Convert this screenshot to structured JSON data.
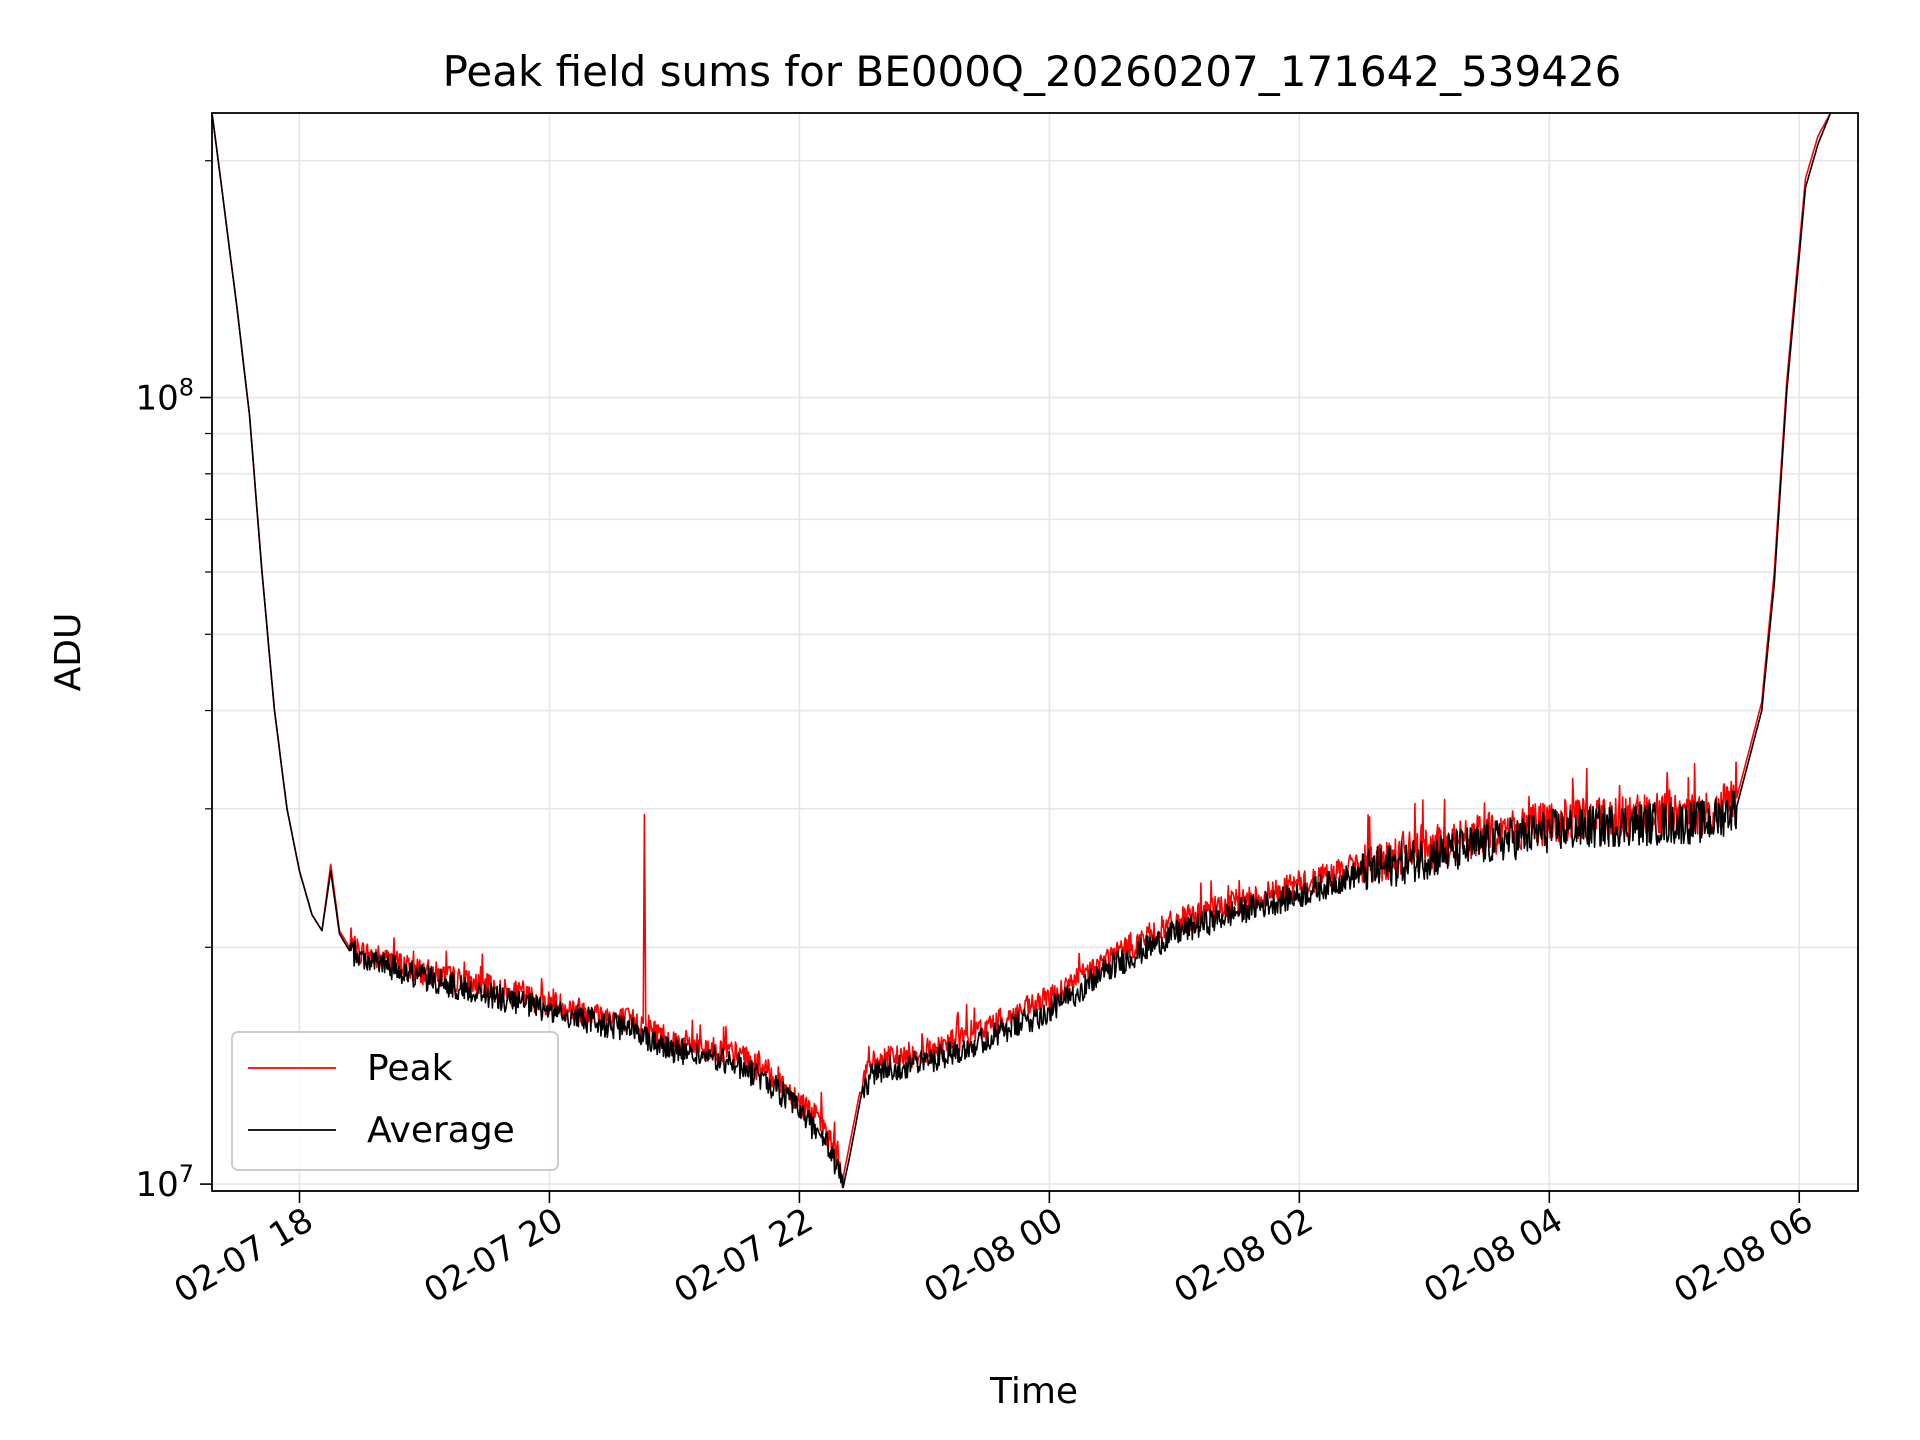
{
  "chart_data": {
    "type": "line",
    "title": "Peak field sums for BE000Q_20260207_171642_539426",
    "xlabel": "Time",
    "ylabel": "ADU",
    "yscale": "log",
    "ylim": [
      9800000,
      230000000
    ],
    "xlim_hours": [
      17.3,
      30.47
    ],
    "x_ticks": [
      {
        "hour": 18,
        "label": "02-07 18"
      },
      {
        "hour": 20,
        "label": "02-07 20"
      },
      {
        "hour": 22,
        "label": "02-07 22"
      },
      {
        "hour": 24,
        "label": "02-08 00"
      },
      {
        "hour": 26,
        "label": "02-08 02"
      },
      {
        "hour": 28,
        "label": "02-08 04"
      },
      {
        "hour": 30,
        "label": "02-08 06"
      }
    ],
    "y_major_ticks": [
      {
        "value": 10000000,
        "label_base": "10",
        "label_exp": "7"
      },
      {
        "value": 100000000,
        "label_base": "10",
        "label_exp": "8"
      }
    ],
    "grid": true,
    "legend_position": "lower-left",
    "series": [
      {
        "name": "Peak",
        "color": "#ff0000",
        "x_hours": [
          17.3,
          17.35,
          17.5,
          17.6,
          17.7,
          17.8,
          17.9,
          18.0,
          18.1,
          18.18,
          18.25,
          18.32,
          18.4,
          18.5,
          19.0,
          19.5,
          20.0,
          20.5,
          20.75,
          20.76,
          20.77,
          20.8,
          21.0,
          21.5,
          21.8,
          22.0,
          22.2,
          22.3,
          22.35,
          22.4,
          22.5,
          22.6,
          23.0,
          23.5,
          24.0,
          24.5,
          25.0,
          25.5,
          26.0,
          26.5,
          27.0,
          27.5,
          28.0,
          28.5,
          29.0,
          29.3,
          29.5,
          29.7,
          29.8,
          29.9,
          30.05,
          30.15,
          30.25
        ],
        "values": [
          230000000,
          200000000,
          130000000,
          95000000,
          60000000,
          40000000,
          30000000,
          25000000,
          22000000,
          21000000,
          25500000,
          21000000,
          20000000,
          19700000,
          18600000,
          17800000,
          17000000,
          16300000,
          16000000,
          29500000,
          16200000,
          15800000,
          15200000,
          14600000,
          13700000,
          12800000,
          11800000,
          10800000,
          10200000,
          11200000,
          13500000,
          14300000,
          14700000,
          15800000,
          17200000,
          19500000,
          21500000,
          22800000,
          24000000,
          25500000,
          26600000,
          27800000,
          28800000,
          29300000,
          29500000,
          29600000,
          31000000,
          41000000,
          60000000,
          105000000,
          190000000,
          215000000,
          230000000
        ]
      },
      {
        "name": "Average",
        "color": "#000000",
        "x_hours": [
          17.3,
          17.35,
          17.5,
          17.6,
          17.7,
          17.8,
          17.9,
          18.0,
          18.1,
          18.18,
          18.25,
          18.32,
          18.4,
          18.5,
          19.0,
          19.5,
          20.0,
          20.5,
          20.75,
          20.77,
          20.8,
          21.0,
          21.5,
          21.8,
          22.0,
          22.2,
          22.3,
          22.35,
          22.4,
          22.5,
          22.6,
          23.0,
          23.5,
          24.0,
          24.5,
          25.0,
          25.5,
          26.0,
          26.5,
          27.0,
          27.5,
          28.0,
          28.5,
          29.0,
          29.3,
          29.5,
          29.7,
          29.8,
          29.9,
          30.05,
          30.15,
          30.25
        ],
        "values": [
          230000000,
          200000000,
          130000000,
          95000000,
          60000000,
          40000000,
          30000000,
          25000000,
          22000000,
          21000000,
          25000000,
          20800000,
          19800000,
          19400000,
          18300000,
          17400000,
          16600000,
          15900000,
          15600000,
          15500000,
          15300000,
          14800000,
          14200000,
          13300000,
          12400000,
          11400000,
          10500000,
          9900000,
          10800000,
          13100000,
          13900000,
          14300000,
          15300000,
          16600000,
          18900000,
          20800000,
          22200000,
          23300000,
          24900000,
          26000000,
          27100000,
          28100000,
          28600000,
          28800000,
          28900000,
          30200000,
          40000000,
          58000000,
          102000000,
          185000000,
          210000000,
          230000000
        ]
      }
    ]
  }
}
